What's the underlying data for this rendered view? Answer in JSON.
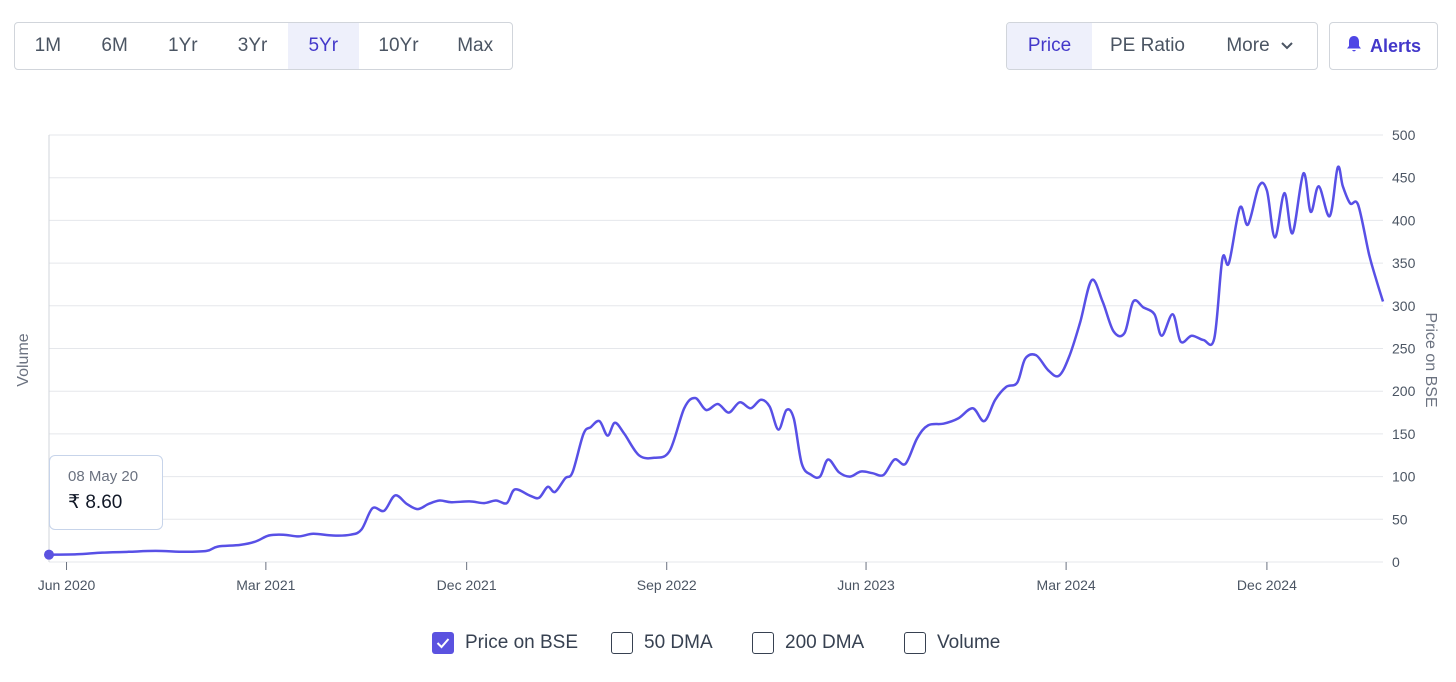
{
  "range_tabs": [
    {
      "label": "1M",
      "active": false
    },
    {
      "label": "6M",
      "active": false
    },
    {
      "label": "1Yr",
      "active": false
    },
    {
      "label": "3Yr",
      "active": false
    },
    {
      "label": "5Yr",
      "active": true
    },
    {
      "label": "10Yr",
      "active": false
    },
    {
      "label": "Max",
      "active": false
    }
  ],
  "metric_tabs": {
    "price": "Price",
    "pe_ratio": "PE Ratio",
    "more": "More"
  },
  "alerts_label": "Alerts",
  "tooltip": {
    "date": "08 May 20",
    "value": "₹ 8.60"
  },
  "legend": [
    {
      "label": "Price on BSE",
      "checked": true
    },
    {
      "label": "50 DMA",
      "checked": false
    },
    {
      "label": "200 DMA",
      "checked": false
    },
    {
      "label": "Volume",
      "checked": false
    }
  ],
  "colors": {
    "accent": "#5b52e0",
    "line": "#5850e6",
    "grid": "#e5e7eb"
  },
  "chart_data": {
    "type": "line",
    "ylabel_left": "Volume",
    "ylabel_right": "Price on BSE",
    "ylim": [
      0,
      500
    ],
    "y_ticks": [
      0,
      50,
      100,
      150,
      200,
      250,
      300,
      350,
      400,
      450,
      500
    ],
    "x_tick_labels": [
      "Jun 2020",
      "Mar 2021",
      "Dec 2021",
      "Sep 2022",
      "Jun 2023",
      "Mar 2024",
      "Dec 2024"
    ],
    "x_ticks": [
      "2020-06-01",
      "2021-03-01",
      "2021-12-01",
      "2022-09-01",
      "2023-06-01",
      "2024-03-01",
      "2024-12-01"
    ],
    "x_range": [
      "2020-05-08",
      "2025-05-09"
    ],
    "series": [
      {
        "name": "Price on BSE",
        "points": [
          [
            "2020-05-08",
            8.6
          ],
          [
            "2020-06-15",
            9
          ],
          [
            "2020-07-20",
            11
          ],
          [
            "2020-08-25",
            12
          ],
          [
            "2020-10-01",
            13
          ],
          [
            "2020-11-10",
            12
          ],
          [
            "2020-12-10",
            13
          ],
          [
            "2020-12-25",
            18
          ],
          [
            "2021-01-25",
            20
          ],
          [
            "2021-02-15",
            24
          ],
          [
            "2021-03-05",
            31
          ],
          [
            "2021-03-25",
            32
          ],
          [
            "2021-04-15",
            30
          ],
          [
            "2021-05-05",
            33
          ],
          [
            "2021-06-01",
            31
          ],
          [
            "2021-06-25",
            32
          ],
          [
            "2021-07-10",
            38
          ],
          [
            "2021-07-25",
            63
          ],
          [
            "2021-08-10",
            60
          ],
          [
            "2021-08-25",
            78
          ],
          [
            "2021-09-10",
            68
          ],
          [
            "2021-09-25",
            62
          ],
          [
            "2021-10-10",
            68
          ],
          [
            "2021-10-25",
            72
          ],
          [
            "2021-11-10",
            70
          ],
          [
            "2021-12-05",
            71
          ],
          [
            "2021-12-25",
            69
          ],
          [
            "2022-01-10",
            72
          ],
          [
            "2022-01-25",
            69
          ],
          [
            "2022-02-05",
            85
          ],
          [
            "2022-02-25",
            78
          ],
          [
            "2022-03-10",
            75
          ],
          [
            "2022-03-22",
            88
          ],
          [
            "2022-04-01",
            82
          ],
          [
            "2022-04-15",
            98
          ],
          [
            "2022-04-25",
            105
          ],
          [
            "2022-05-10",
            150
          ],
          [
            "2022-05-20",
            158
          ],
          [
            "2022-06-01",
            165
          ],
          [
            "2022-06-12",
            148
          ],
          [
            "2022-06-22",
            163
          ],
          [
            "2022-07-05",
            150
          ],
          [
            "2022-07-25",
            125
          ],
          [
            "2022-08-15",
            122
          ],
          [
            "2022-09-05",
            130
          ],
          [
            "2022-09-25",
            180
          ],
          [
            "2022-10-10",
            192
          ],
          [
            "2022-10-25",
            178
          ],
          [
            "2022-11-10",
            185
          ],
          [
            "2022-11-25",
            175
          ],
          [
            "2022-12-10",
            187
          ],
          [
            "2022-12-25",
            180
          ],
          [
            "2023-01-08",
            190
          ],
          [
            "2023-01-20",
            182
          ],
          [
            "2023-02-01",
            155
          ],
          [
            "2023-02-12",
            178
          ],
          [
            "2023-02-22",
            168
          ],
          [
            "2023-03-05",
            115
          ],
          [
            "2023-03-18",
            102
          ],
          [
            "2023-03-30",
            100
          ],
          [
            "2023-04-10",
            120
          ],
          [
            "2023-04-25",
            105
          ],
          [
            "2023-05-10",
            100
          ],
          [
            "2023-05-25",
            106
          ],
          [
            "2023-06-10",
            104
          ],
          [
            "2023-06-25",
            102
          ],
          [
            "2023-07-10",
            120
          ],
          [
            "2023-07-25",
            115
          ],
          [
            "2023-08-10",
            145
          ],
          [
            "2023-08-25",
            160
          ],
          [
            "2023-09-15",
            162
          ],
          [
            "2023-10-05",
            168
          ],
          [
            "2023-10-25",
            180
          ],
          [
            "2023-11-10",
            165
          ],
          [
            "2023-11-25",
            190
          ],
          [
            "2023-12-10",
            205
          ],
          [
            "2023-12-25",
            210
          ],
          [
            "2024-01-05",
            238
          ],
          [
            "2024-01-20",
            242
          ],
          [
            "2024-02-05",
            225
          ],
          [
            "2024-02-20",
            218
          ],
          [
            "2024-03-05",
            240
          ],
          [
            "2024-03-20",
            280
          ],
          [
            "2024-04-05",
            330
          ],
          [
            "2024-04-20",
            305
          ],
          [
            "2024-05-05",
            270
          ],
          [
            "2024-05-20",
            268
          ],
          [
            "2024-06-01",
            305
          ],
          [
            "2024-06-15",
            298
          ],
          [
            "2024-06-30",
            290
          ],
          [
            "2024-07-10",
            265
          ],
          [
            "2024-07-25",
            290
          ],
          [
            "2024-08-05",
            258
          ],
          [
            "2024-08-20",
            265
          ],
          [
            "2024-09-05",
            260
          ],
          [
            "2024-09-20",
            262
          ],
          [
            "2024-10-01",
            355
          ],
          [
            "2024-10-10",
            350
          ],
          [
            "2024-10-25",
            415
          ],
          [
            "2024-11-05",
            395
          ],
          [
            "2024-11-20",
            440
          ],
          [
            "2024-12-01",
            435
          ],
          [
            "2024-12-12",
            380
          ],
          [
            "2024-12-25",
            432
          ],
          [
            "2025-01-05",
            385
          ],
          [
            "2025-01-20",
            455
          ],
          [
            "2025-01-30",
            410
          ],
          [
            "2025-02-10",
            440
          ],
          [
            "2025-02-25",
            405
          ],
          [
            "2025-03-08",
            462
          ],
          [
            "2025-03-15",
            440
          ],
          [
            "2025-03-25",
            420
          ],
          [
            "2025-04-05",
            418
          ],
          [
            "2025-04-20",
            360
          ],
          [
            "2025-04-30",
            330
          ],
          [
            "2025-05-09",
            305
          ]
        ]
      }
    ]
  }
}
